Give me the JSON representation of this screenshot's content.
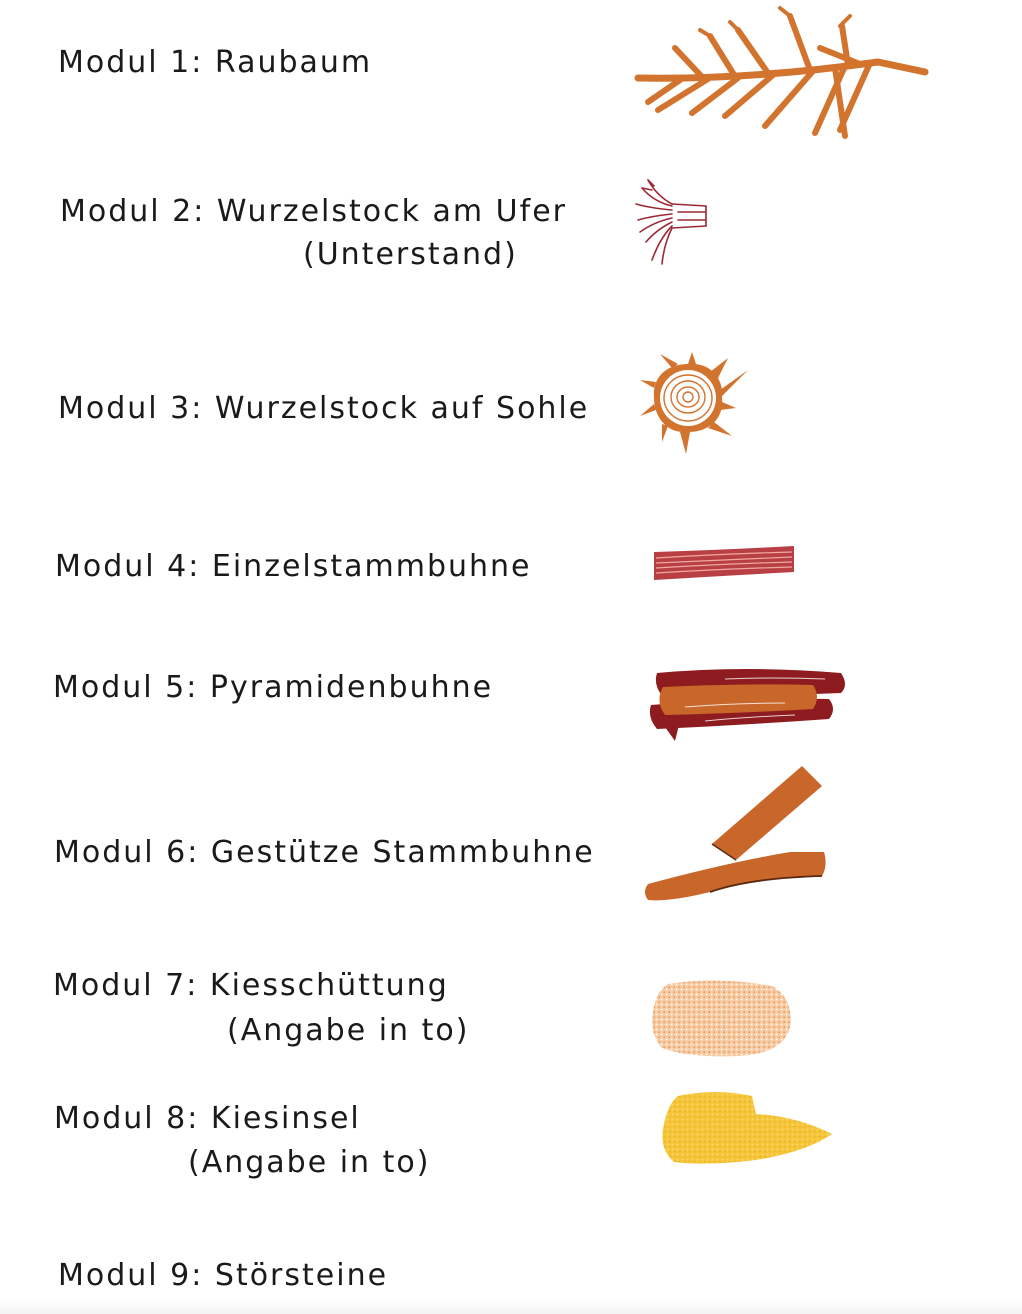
{
  "legend": {
    "items": [
      {
        "title": "Modul 1: Raubaum",
        "symbol": "tree-crown-icon",
        "color": "#D2732E"
      },
      {
        "title": "Modul 2: Wurzelstock am Ufer",
        "subtitle": "(Unterstand)",
        "symbol": "root-stock-shore-icon",
        "color": "#9B2A36"
      },
      {
        "title": "Modul 3: Wurzelstock auf Sohle",
        "symbol": "root-stock-bed-icon",
        "color": "#D2732E"
      },
      {
        "title": "Modul 4: Einzelstammbuhne",
        "symbol": "single-log-icon",
        "color": "#B84045"
      },
      {
        "title": "Modul 5: Pyramidenbuhne",
        "symbol": "log-pyramid-icon",
        "color": "#8E1B1F"
      },
      {
        "title": "Modul 6: Gestütze Stammbuhne",
        "symbol": "supported-log-icon",
        "color": "#C9662A"
      },
      {
        "title": "Modul 7: Kiesschüttung",
        "subtitle": "(Angabe in to)",
        "symbol": "gravel-fill-icon",
        "color": "#F2B98A"
      },
      {
        "title": "Modul 8: Kiesinsel",
        "subtitle": "(Angabe in to)",
        "symbol": "gravel-island-icon",
        "color": "#F5C53A"
      },
      {
        "title": "Modul 9: Störsteine"
      }
    ]
  }
}
